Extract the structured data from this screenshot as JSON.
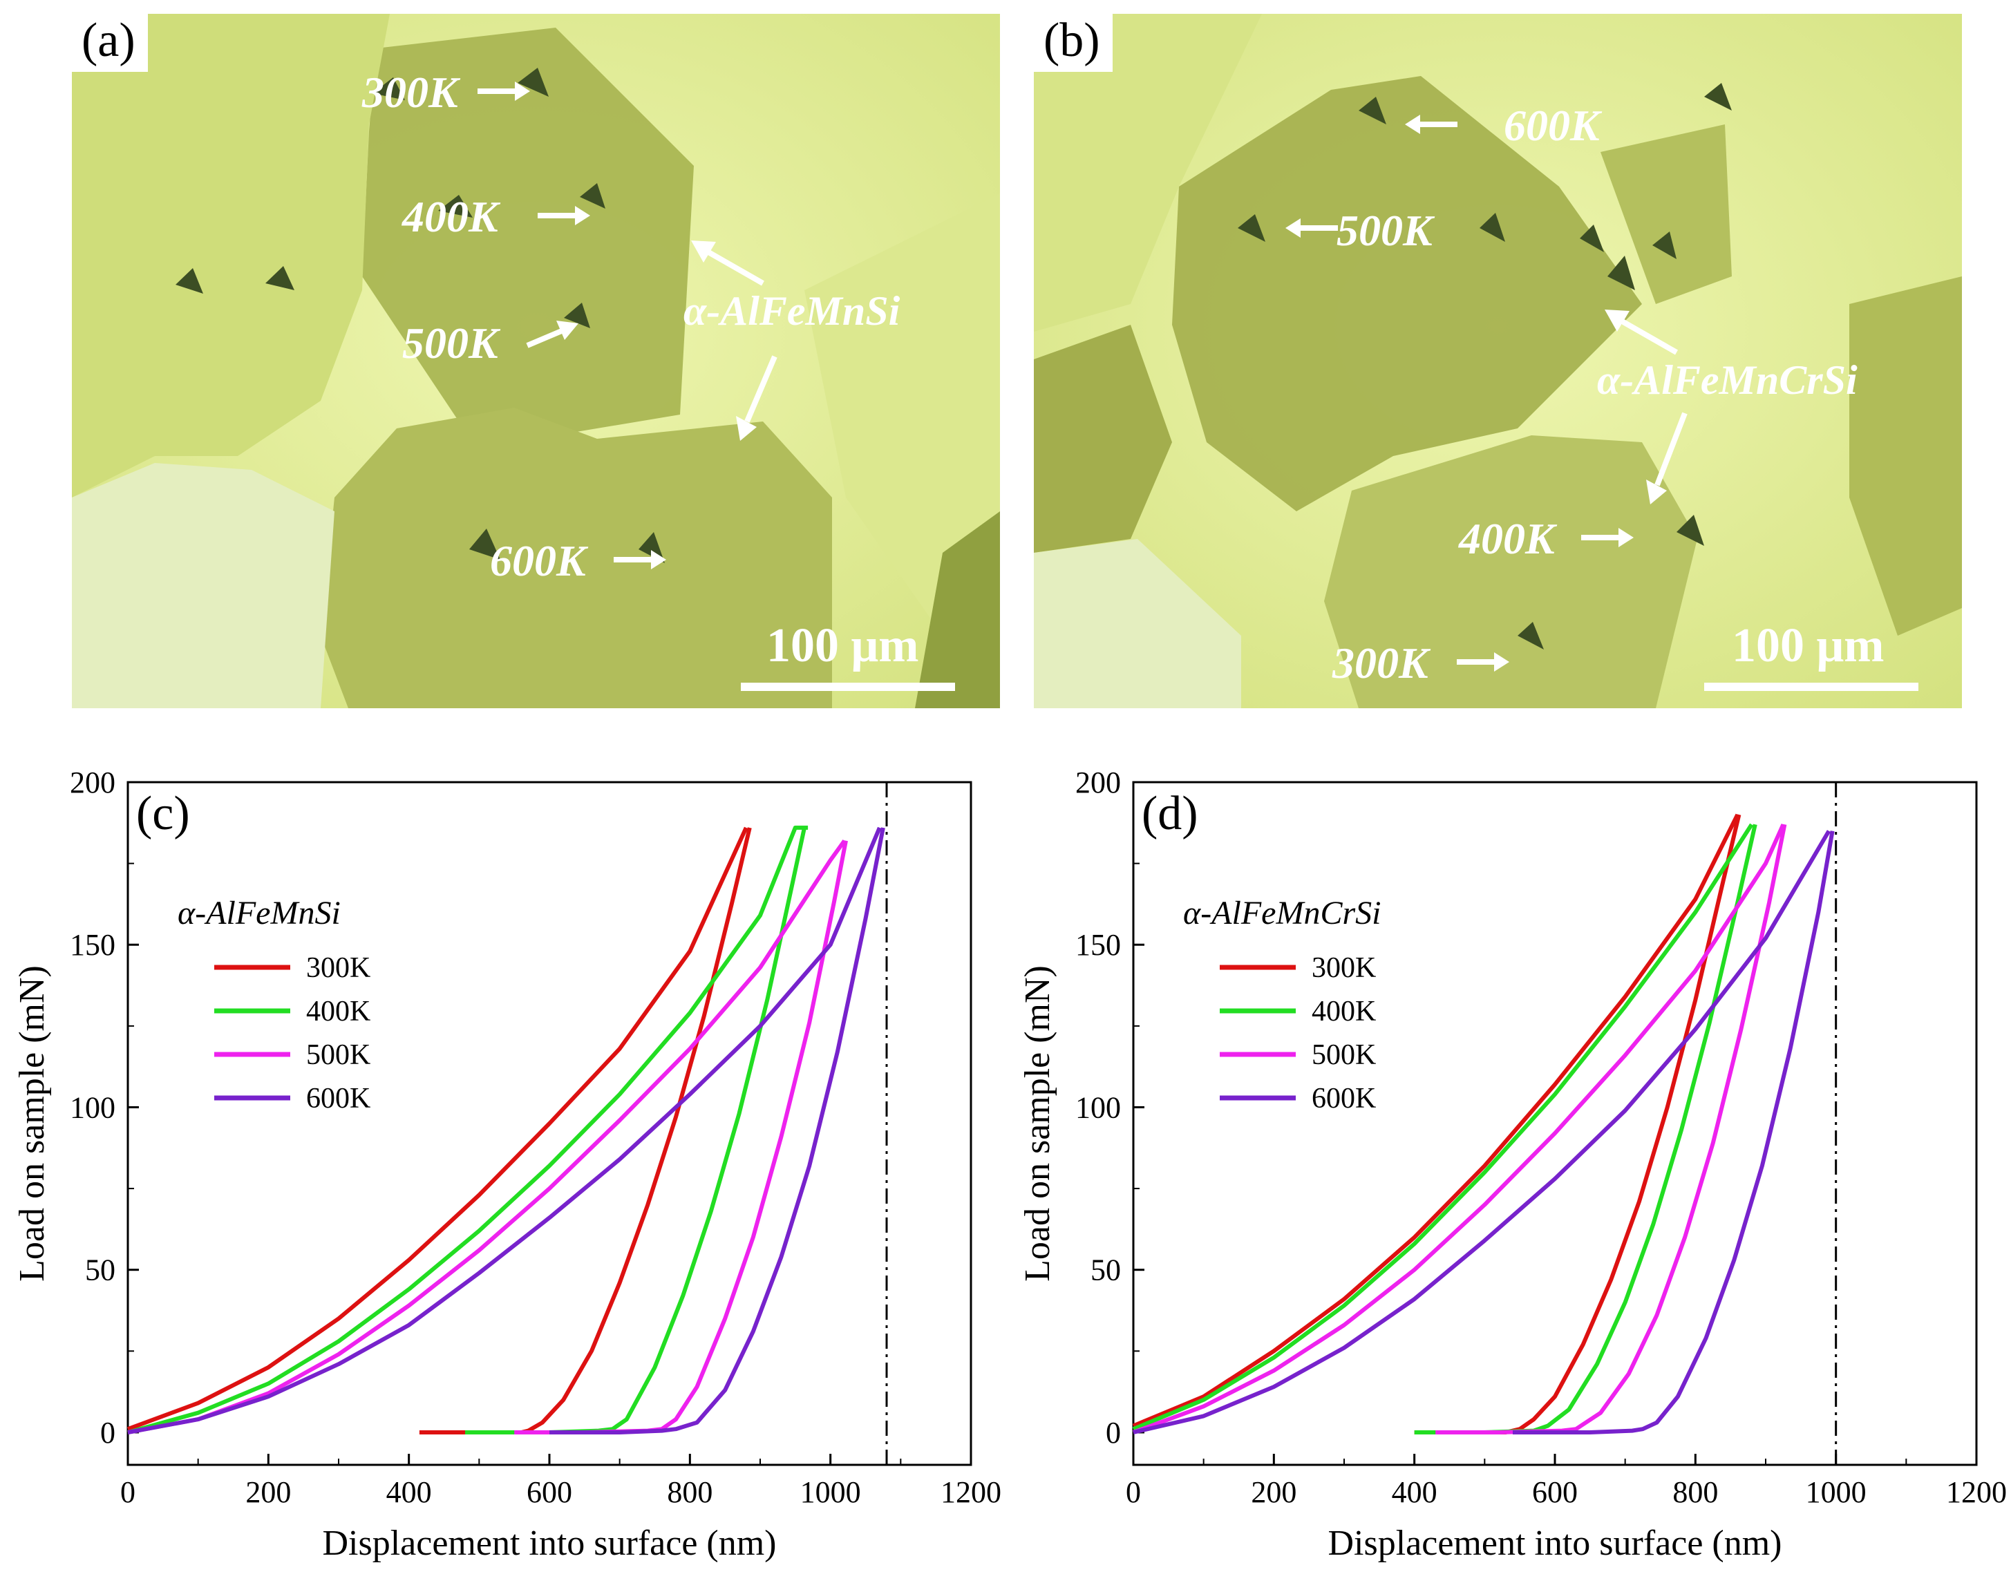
{
  "micrographs": [
    {
      "panel_label": "(a)",
      "indents": [
        "300K",
        "400K",
        "500K",
        "600K"
      ],
      "phase": "α-AlFeMnSi",
      "scale_bar": "100 μm"
    },
    {
      "panel_label": "(b)",
      "indents": [
        "600K",
        "500K",
        "400K",
        "300K"
      ],
      "phase": "α-AlFeMnCrSi",
      "scale_bar": "100 μm"
    }
  ],
  "colors": {
    "300K": "#dd1111",
    "400K": "#22dd22",
    "500K": "#ee22ee",
    "600K": "#7722cc",
    "micrograph_light": "#e2ec9a",
    "micrograph_dark": "#a9b752",
    "micrograph_mid": "#c6d270"
  },
  "chart_data": [
    {
      "type": "line",
      "panel_label": "(c)",
      "legend_title": "α-AlFeMnSi",
      "xlabel": "Displacement into surface (nm)",
      "ylabel": "Load on sample (mN)",
      "xlim": [
        0,
        1200
      ],
      "ylim": [
        -10,
        200
      ],
      "xticks": [
        0,
        200,
        400,
        600,
        800,
        1000,
        1200
      ],
      "yticks": [
        0,
        50,
        100,
        150,
        200
      ],
      "vline_x": 1080,
      "series": [
        {
          "name": "300K",
          "load_x": [
            0,
            100,
            200,
            300,
            400,
            500,
            600,
            700,
            800,
            880
          ],
          "load_y": [
            1,
            9,
            20,
            35,
            53,
            73,
            95,
            118,
            148,
            186
          ],
          "unload_x": [
            885,
            860,
            820,
            780,
            740,
            700,
            660,
            620,
            590,
            570,
            560,
            480,
            415
          ],
          "unload_y": [
            186,
            163,
            128,
            97,
            70,
            46,
            25,
            10,
            3,
            0.5,
            0,
            0,
            0
          ]
        },
        {
          "name": "400K",
          "load_x": [
            0,
            100,
            200,
            300,
            400,
            500,
            600,
            700,
            800,
            900,
            950,
            968
          ],
          "load_y": [
            0,
            6,
            15,
            28,
            44,
            62,
            82,
            104,
            129,
            159,
            186,
            186
          ],
          "unload_x": [
            963,
            945,
            910,
            870,
            830,
            790,
            750,
            710,
            690,
            670,
            600,
            480
          ],
          "unload_y": [
            186,
            168,
            133,
            98,
            68,
            42,
            20,
            4,
            1,
            0.5,
            0,
            0
          ]
        },
        {
          "name": "500K",
          "load_x": [
            0,
            100,
            200,
            300,
            400,
            500,
            600,
            700,
            800,
            900,
            1000,
            1020
          ],
          "load_y": [
            0,
            4,
            12,
            24,
            39,
            56,
            75,
            96,
            118,
            143,
            176,
            182
          ],
          "unload_x": [
            1022,
            1005,
            970,
            930,
            890,
            850,
            810,
            780,
            760,
            740,
            650,
            550
          ],
          "unload_y": [
            182,
            163,
            126,
            91,
            60,
            35,
            14,
            4,
            1,
            0.5,
            0,
            0
          ]
        },
        {
          "name": "600K",
          "load_x": [
            0,
            100,
            200,
            300,
            400,
            500,
            600,
            700,
            800,
            900,
            1000,
            1070
          ],
          "load_y": [
            0,
            4,
            11,
            21,
            33,
            49,
            66,
            84,
            104,
            125,
            150,
            186
          ],
          "unload_x": [
            1075,
            1050,
            1010,
            970,
            930,
            890,
            850,
            810,
            780,
            760,
            700,
            600
          ],
          "unload_y": [
            186,
            158,
            117,
            82,
            54,
            31,
            13,
            3,
            1,
            0.5,
            0,
            0
          ]
        }
      ]
    },
    {
      "type": "line",
      "panel_label": "(d)",
      "legend_title": "α-AlFeMnCrSi",
      "xlabel": "Displacement into surface (nm)",
      "ylabel": "Load on sample (mN)",
      "xlim": [
        0,
        1200
      ],
      "ylim": [
        -10,
        200
      ],
      "xticks": [
        0,
        200,
        400,
        600,
        800,
        1000,
        1200
      ],
      "yticks": [
        0,
        50,
        100,
        150,
        200
      ],
      "vline_x": 1000,
      "series": [
        {
          "name": "300K",
          "load_x": [
            0,
            100,
            200,
            300,
            400,
            500,
            600,
            700,
            800,
            860
          ],
          "load_y": [
            2,
            11,
            25,
            41,
            60,
            82,
            107,
            134,
            164,
            190
          ],
          "unload_x": [
            862,
            840,
            800,
            760,
            720,
            680,
            640,
            600,
            570,
            550,
            530,
            450,
            400
          ],
          "unload_y": [
            190,
            170,
            133,
            100,
            71,
            47,
            27,
            11,
            4,
            1,
            0,
            0,
            0
          ]
        },
        {
          "name": "400K",
          "load_x": [
            0,
            100,
            200,
            300,
            400,
            500,
            600,
            700,
            800,
            880
          ],
          "load_y": [
            1,
            10,
            23,
            39,
            58,
            80,
            104,
            131,
            160,
            187
          ],
          "unload_x": [
            885,
            860,
            820,
            780,
            740,
            700,
            660,
            620,
            590,
            570,
            500,
            400
          ],
          "unload_y": [
            187,
            163,
            126,
            93,
            64,
            40,
            21,
            7,
            2,
            0.5,
            0,
            0
          ]
        },
        {
          "name": "500K",
          "load_x": [
            0,
            100,
            200,
            300,
            400,
            500,
            600,
            700,
            800,
            900,
            925
          ],
          "load_y": [
            0,
            8,
            19,
            33,
            50,
            70,
            92,
            116,
            142,
            175,
            187
          ],
          "unload_x": [
            927,
            905,
            865,
            825,
            785,
            745,
            705,
            665,
            630,
            610,
            520,
            430
          ],
          "unload_y": [
            187,
            163,
            124,
            89,
            60,
            36,
            18,
            6,
            1,
            0.5,
            0,
            0
          ]
        },
        {
          "name": "600K",
          "load_x": [
            0,
            100,
            200,
            300,
            400,
            500,
            600,
            700,
            800,
            900,
            990
          ],
          "load_y": [
            0,
            5,
            14,
            26,
            41,
            59,
            78,
            99,
            124,
            152,
            185
          ],
          "unload_x": [
            995,
            975,
            935,
            895,
            855,
            815,
            775,
            745,
            725,
            710,
            650,
            540
          ],
          "unload_y": [
            185,
            160,
            118,
            82,
            53,
            29,
            11,
            3,
            1,
            0.5,
            0,
            0
          ]
        }
      ]
    }
  ]
}
